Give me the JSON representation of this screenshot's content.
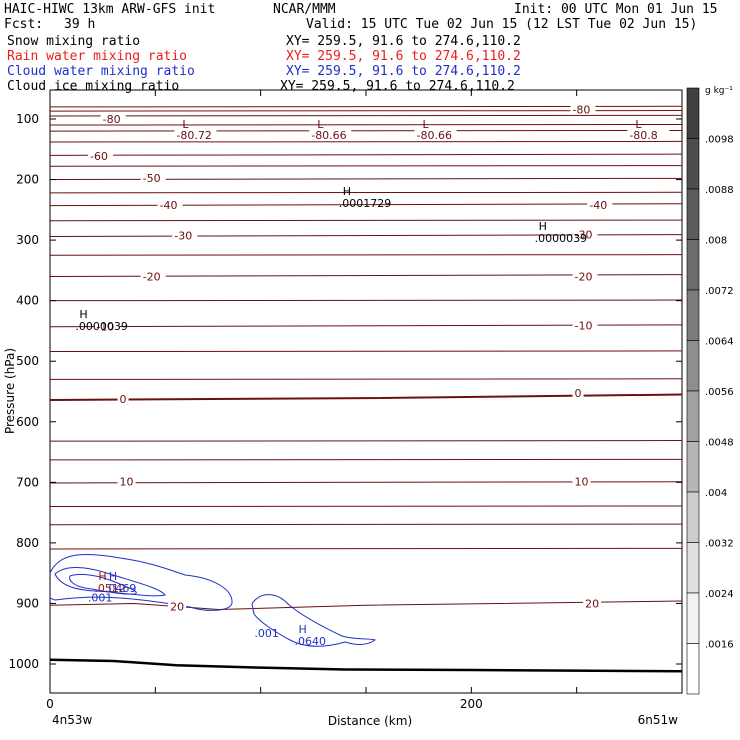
{
  "header": {
    "model_line": "HAIC-HIWC 13km ARW-GFS init",
    "org": "NCAR/MMM",
    "init": "Init: 00 UTC Mon 01 Jun 15",
    "fcst_label": "Fcst:",
    "fcst_value": "39 h",
    "valid": "Valid: 15 UTC Tue 02 Jun 15 (12 LST Tue 02 Jun 15)",
    "fields": [
      {
        "name": "Snow mixing ratio",
        "xy": "XY= 259.5, 91.6 to 274.6,110.2",
        "color": "#000000"
      },
      {
        "name": "Rain water mixing ratio",
        "xy": "XY= 259.5, 91.6 to 274.6,110.2",
        "color": "#e8201c"
      },
      {
        "name": "Cloud water mixing ratio",
        "xy": "XY= 259.5, 91.6 to 274.6,110.2",
        "color": "#2030c8"
      },
      {
        "name": "Cloud ice mixing ratio",
        "xy": "XY= 259.5, 91.6 to 274.6,110.2",
        "color": "#000000"
      }
    ]
  },
  "chart_data": {
    "type": "contour-cross-section",
    "xlabel": "Distance (km)",
    "ylabel": "Pressure (hPa)",
    "x_range_km": [
      0,
      300
    ],
    "x_ticks": [
      0,
      200
    ],
    "x_end_labels": {
      "left": "4n53w",
      "right": "6n51w"
    },
    "y_range_hpa": [
      70,
      1050
    ],
    "y_ticks": [
      100,
      200,
      300,
      400,
      500,
      600,
      700,
      800,
      900,
      1000
    ],
    "temperature_contour_levels_c": [
      -80,
      -60,
      -50,
      -40,
      -30,
      -20,
      -10,
      0,
      10,
      20
    ],
    "temperature_lines": [
      {
        "level": -80,
        "pressure_hpa": [
          [
            0,
            95
          ],
          [
            300,
            94
          ]
        ]
      },
      {
        "level": -60,
        "pressure_hpa": [
          [
            0,
            160
          ],
          [
            300,
            158
          ]
        ]
      },
      {
        "level": -50,
        "pressure_hpa": [
          [
            0,
            200
          ],
          [
            300,
            198
          ]
        ]
      },
      {
        "level": -40,
        "pressure_hpa": [
          [
            0,
            243
          ],
          [
            300,
            240
          ]
        ]
      },
      {
        "level": -30,
        "pressure_hpa": [
          [
            0,
            294
          ],
          [
            300,
            291
          ]
        ]
      },
      {
        "level": -20,
        "pressure_hpa": [
          [
            0,
            360
          ],
          [
            300,
            357
          ]
        ]
      },
      {
        "level": -10,
        "pressure_hpa": [
          [
            0,
            443
          ],
          [
            300,
            440
          ]
        ]
      },
      {
        "level": 0,
        "pressure_hpa": [
          [
            0,
            564
          ],
          [
            150,
            561
          ],
          [
            300,
            555
          ]
        ]
      },
      {
        "level": 10,
        "pressure_hpa": [
          [
            0,
            701
          ],
          [
            300,
            699
          ]
        ]
      },
      {
        "level": 20,
        "pressure_hpa": [
          [
            0,
            903
          ],
          [
            40,
            900
          ],
          [
            80,
            910
          ],
          [
            150,
            903
          ],
          [
            300,
            896
          ]
        ]
      }
    ],
    "extra_isotherm_pressures_hpa": [
      80,
      87,
      110,
      120,
      138,
      178,
      222,
      268,
      325,
      400,
      484,
      530,
      632,
      663,
      740,
      770,
      810
    ],
    "isotherm_labels": [
      {
        "text": "-80",
        "x_km": 25,
        "p_hpa": 103
      },
      {
        "text": "-80",
        "x_km": 248,
        "p_hpa": 88
      },
      {
        "text": "-60",
        "x_km": 19,
        "p_hpa": 164
      },
      {
        "text": "-50",
        "x_km": 44,
        "p_hpa": 201
      },
      {
        "text": "-40",
        "x_km": 52,
        "p_hpa": 245
      },
      {
        "text": "-40",
        "x_km": 256,
        "p_hpa": 245
      },
      {
        "text": "-30",
        "x_km": 59,
        "p_hpa": 296
      },
      {
        "text": "-30",
        "x_km": 249,
        "p_hpa": 294
      },
      {
        "text": "-20",
        "x_km": 44,
        "p_hpa": 363
      },
      {
        "text": "-20",
        "x_km": 249,
        "p_hpa": 363
      },
      {
        "text": "-10",
        "x_km": 22,
        "p_hpa": 446
      },
      {
        "text": "-10",
        "x_km": 249,
        "p_hpa": 444
      },
      {
        "text": "0",
        "x_km": 33,
        "p_hpa": 566
      },
      {
        "text": "0",
        "x_km": 249,
        "p_hpa": 556
      },
      {
        "text": "10",
        "x_km": 33,
        "p_hpa": 702
      },
      {
        "text": "10",
        "x_km": 249,
        "p_hpa": 702
      },
      {
        "text": "20",
        "x_km": 57,
        "p_hpa": 908
      },
      {
        "text": "20",
        "x_km": 254,
        "p_hpa": 903
      }
    ],
    "minima": [
      {
        "mark": "L",
        "value": "-80.72",
        "x_km": 60,
        "p_hpa": 85
      },
      {
        "mark": "L",
        "value": "-80.66",
        "x_km": 124,
        "p_hpa": 85
      },
      {
        "mark": "L",
        "value": "-80.66",
        "x_km": 174,
        "p_hpa": 85
      },
      {
        "mark": "L",
        "value": "-80.8",
        "x_km": 275,
        "p_hpa": 85
      }
    ],
    "maxima": [
      {
        "mark": "H",
        "value": ".0001729",
        "x_km": 138,
        "p_hpa": 232,
        "color": "#000000"
      },
      {
        "mark": "H",
        "value": ".0000039",
        "x_km": 231,
        "p_hpa": 290,
        "color": "#000000"
      },
      {
        "mark": "H",
        "value": ".0000039",
        "x_km": 13,
        "p_hpa": 435,
        "color": "#000000"
      },
      {
        "mark": "H",
        "value": ".0512",
        "x_km": 22,
        "p_hpa": 868,
        "color": "#8b1a1a"
      },
      {
        "mark": "H",
        "value": ".0469",
        "x_km": 27,
        "p_hpa": 868,
        "color": "#2030c8"
      },
      {
        "mark": "H",
        "value": ".0640",
        "x_km": 117,
        "p_hpa": 955,
        "color": "#2030c8"
      }
    ],
    "cloud_water_labels": [
      {
        "text": ".001",
        "x_km": 18,
        "p_hpa": 897
      },
      {
        "text": ".001",
        "x_km": 97,
        "p_hpa": 955
      }
    ],
    "cloud_water_contour_levels": [
      0.001,
      0.01,
      0.02,
      0.03,
      0.04
    ],
    "terrain_surface_hpa": [
      [
        0,
        993
      ],
      [
        30,
        995
      ],
      [
        60,
        1002
      ],
      [
        100,
        1006
      ],
      [
        140,
        1009
      ],
      [
        200,
        1010
      ],
      [
        300,
        1012
      ]
    ],
    "colorbar": {
      "unit": "g kg⁻¹",
      "labels": [
        ".0098",
        ".0088",
        ".008",
        ".0072",
        ".0064",
        ".0056",
        ".0048",
        ".004",
        ".0032",
        ".0024",
        ".0016"
      ],
      "grays": [
        "#404040",
        "#4e4e4e",
        "#5c5c5c",
        "#6c6c6c",
        "#7c7c7c",
        "#8e8e8e",
        "#a2a2a2",
        "#b6b6b6",
        "#cccccc",
        "#e0e0e0",
        "#f2f2f2",
        "#ffffff"
      ]
    }
  }
}
